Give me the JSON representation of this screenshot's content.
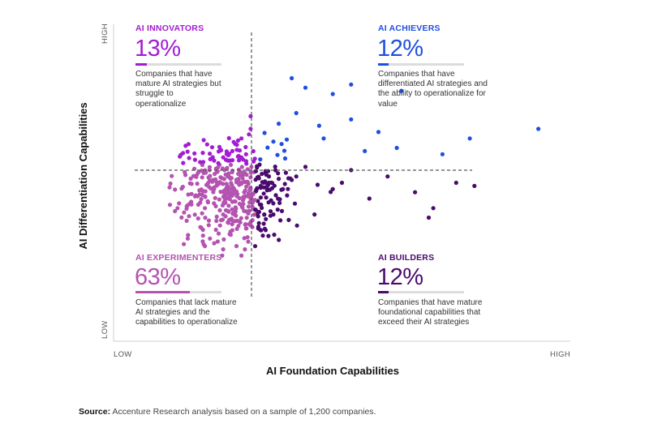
{
  "chart_data": {
    "type": "scatter",
    "title": "",
    "xlabel": "AI Foundation Capabilities",
    "ylabel": "AI Differentiation Capabilities",
    "x_ticks": {
      "low": "LOW",
      "high": "HIGH"
    },
    "y_ticks": {
      "low": "LOW",
      "high": "HIGH"
    },
    "xlim": [
      0,
      100
    ],
    "ylim": [
      0,
      100
    ],
    "thresholds": {
      "x": 31,
      "y": 56
    },
    "grid": false,
    "legend": "none",
    "quadrants": [
      {
        "key": "innovators",
        "title": "AI INNOVATORS",
        "value": "13%",
        "share": 13,
        "color": "#a21cd3",
        "description": "Companies that have mature AI strategies but struggle to operationalize"
      },
      {
        "key": "achievers",
        "title": "AI ACHIEVERS",
        "value": "12%",
        "share": 12,
        "color": "#1f4fe0",
        "description": "Companies that have differentiated AI strategies and the ability to operationalize for value"
      },
      {
        "key": "experimenters",
        "title": "AI EXPERIMENTERS",
        "value": "63%",
        "share": 63,
        "color": "#b453b0",
        "description": "Companies that lack mature AI strategies and the capabilities to operationalize"
      },
      {
        "key": "builders",
        "title": "AI BUILDERS",
        "value": "12%",
        "share": 12,
        "color": "#4a0a6e",
        "description": "Companies that have mature foundational capabilities that exceed their AI strategies"
      }
    ],
    "series": [
      {
        "quadrant": "achievers",
        "points": [
          [
            35,
            63
          ],
          [
            40,
            72
          ],
          [
            42,
            80
          ],
          [
            46,
            64
          ],
          [
            48,
            78
          ],
          [
            52,
            70
          ],
          [
            55,
            60
          ],
          [
            58,
            66
          ],
          [
            62,
            61
          ],
          [
            72,
            59
          ],
          [
            78,
            64
          ],
          [
            93,
            67
          ],
          [
            63,
            79
          ],
          [
            52,
            81
          ],
          [
            39,
            83
          ],
          [
            45,
            68
          ]
        ]
      },
      {
        "quadrant": "builders",
        "points": [
          [
            34,
            50
          ],
          [
            38,
            46
          ],
          [
            40,
            52
          ],
          [
            44,
            40
          ],
          [
            48,
            48
          ],
          [
            52,
            54
          ],
          [
            56,
            45
          ],
          [
            60,
            52
          ],
          [
            66,
            47
          ],
          [
            70,
            42
          ],
          [
            75,
            50
          ],
          [
            79,
            49
          ],
          [
            69,
            39
          ],
          [
            33,
            40
          ],
          [
            31,
            30
          ],
          [
            36,
            53
          ],
          [
            42,
            55
          ],
          [
            50,
            50
          ]
        ]
      },
      {
        "quadrant": "innovators",
        "points": [
          [
            22,
            57
          ],
          [
            26,
            60
          ],
          [
            28,
            64
          ],
          [
            30,
            67
          ],
          [
            24,
            58
          ],
          [
            29,
            59
          ],
          [
            27,
            62
          ],
          [
            30,
            71
          ],
          [
            25,
            57
          ],
          [
            28,
            58
          ]
        ]
      },
      {
        "quadrant": "experimenters",
        "points": [
          [
            18,
            46
          ],
          [
            20,
            42
          ],
          [
            22,
            48
          ],
          [
            24,
            40
          ],
          [
            26,
            44
          ],
          [
            28,
            50
          ],
          [
            30,
            45
          ],
          [
            16,
            38
          ],
          [
            19,
            36
          ],
          [
            23,
            34
          ],
          [
            27,
            38
          ],
          [
            29,
            41
          ],
          [
            25,
            52
          ],
          [
            21,
            54
          ],
          [
            17,
            44
          ],
          [
            20,
            30
          ],
          [
            24,
            29
          ],
          [
            28,
            27
          ],
          [
            14,
            42
          ],
          [
            26,
            35
          ]
        ]
      }
    ]
  },
  "source": {
    "label": "Source:",
    "text": "Accenture Research analysis based on a sample of 1,200 companies."
  }
}
